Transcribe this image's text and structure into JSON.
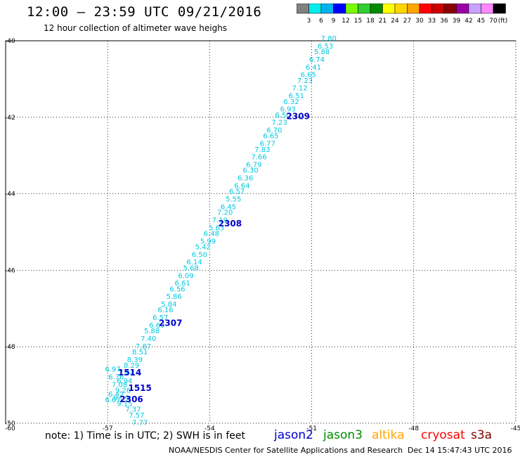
{
  "title": "12:00 – 23:59 UTC 09/21/2016",
  "subtitle": "12 hour collection of altimeter wave heighs",
  "colorbar": {
    "labels": [
      "3",
      "6",
      "9",
      "12",
      "15",
      "18",
      "21",
      "24",
      "27",
      "30",
      "33",
      "36",
      "39",
      "42",
      "45",
      "70"
    ],
    "unit": "(ft)",
    "colors": [
      "#808080",
      "#00eeee",
      "#00b2ee",
      "#0000ff",
      "#7cfc00",
      "#32cd32",
      "#008b00",
      "#ffff00",
      "#ffd700",
      "#ffa500",
      "#ff0000",
      "#cd0000",
      "#8b0000",
      "#9a00a5",
      "#c8a2ff",
      "#ff88ff",
      "#000000"
    ]
  },
  "map": {
    "lon_ticks": [
      "-57",
      "-54",
      "-51",
      "-48",
      "-45"
    ],
    "lat_ticks": [
      "-40",
      "-42",
      "-44",
      "-46",
      "-48",
      "-50"
    ],
    "corner_label": "-60",
    "track_color": "#00c8e0",
    "time_color": "#0000cd",
    "wave_labels": [
      {
        "text": "7.80",
        "lon": -50.5,
        "lat": -40.0
      },
      {
        "text": "6.53",
        "lon": -50.6,
        "lat": -40.2
      },
      {
        "text": "5.88",
        "lon": -50.7,
        "lat": -40.35
      },
      {
        "text": "6.74",
        "lon": -50.85,
        "lat": -40.55
      },
      {
        "text": "6.41",
        "lon": -50.95,
        "lat": -40.75
      },
      {
        "text": "6.65",
        "lon": -51.1,
        "lat": -40.95
      },
      {
        "text": "7.23",
        "lon": -51.2,
        "lat": -41.1
      },
      {
        "text": "7.12",
        "lon": -51.35,
        "lat": -41.3
      },
      {
        "text": "6.51",
        "lon": -51.45,
        "lat": -41.5
      },
      {
        "text": "6.32",
        "lon": -51.6,
        "lat": -41.65
      },
      {
        "text": "6.93",
        "lon": -51.7,
        "lat": -41.85
      },
      {
        "text": "6.50",
        "lon": -51.85,
        "lat": -42.0
      },
      {
        "text": "7.23",
        "lon": -51.95,
        "lat": -42.2
      },
      {
        "text": "6.70",
        "lon": -52.1,
        "lat": -42.4
      },
      {
        "text": "6.65",
        "lon": -52.2,
        "lat": -42.55
      },
      {
        "text": "6.77",
        "lon": -52.3,
        "lat": -42.75
      },
      {
        "text": "7.83",
        "lon": -52.45,
        "lat": -42.9
      },
      {
        "text": "7.66",
        "lon": -52.55,
        "lat": -43.1
      },
      {
        "text": "6.79",
        "lon": -52.7,
        "lat": -43.3
      },
      {
        "text": "6.30",
        "lon": -52.8,
        "lat": -43.45
      },
      {
        "text": "6.36",
        "lon": -52.95,
        "lat": -43.65
      },
      {
        "text": "6.64",
        "lon": -53.05,
        "lat": -43.85
      },
      {
        "text": "6.57",
        "lon": -53.2,
        "lat": -44.0
      },
      {
        "text": "5.55",
        "lon": -53.3,
        "lat": -44.2
      },
      {
        "text": "6.45",
        "lon": -53.45,
        "lat": -44.4
      },
      {
        "text": "7.20",
        "lon": -53.55,
        "lat": -44.55
      },
      {
        "text": "7.19",
        "lon": -53.7,
        "lat": -44.75
      },
      {
        "text": "5.63",
        "lon": -53.8,
        "lat": -44.95
      },
      {
        "text": "6.48",
        "lon": -53.95,
        "lat": -45.1
      },
      {
        "text": "5.99",
        "lon": -54.05,
        "lat": -45.3
      },
      {
        "text": "5.42",
        "lon": -54.2,
        "lat": -45.45
      },
      {
        "text": "6.50",
        "lon": -54.3,
        "lat": -45.65
      },
      {
        "text": "6.14",
        "lon": -54.45,
        "lat": -45.85
      },
      {
        "text": "5.68",
        "lon": -54.55,
        "lat": -46.0
      },
      {
        "text": "6.09",
        "lon": -54.7,
        "lat": -46.2
      },
      {
        "text": "6.61",
        "lon": -54.8,
        "lat": -46.4
      },
      {
        "text": "6.56",
        "lon": -54.95,
        "lat": -46.55
      },
      {
        "text": "5.86",
        "lon": -55.05,
        "lat": -46.75
      },
      {
        "text": "5.84",
        "lon": -55.2,
        "lat": -46.95
      },
      {
        "text": "6.16",
        "lon": -55.3,
        "lat": -47.1
      },
      {
        "text": "6.57",
        "lon": -55.45,
        "lat": -47.3
      },
      {
        "text": "6.60",
        "lon": -55.55,
        "lat": -47.5
      },
      {
        "text": "5.88",
        "lon": -55.7,
        "lat": -47.65
      },
      {
        "text": "7.40",
        "lon": -55.8,
        "lat": -47.85
      },
      {
        "text": "7.87",
        "lon": -55.95,
        "lat": -48.05
      },
      {
        "text": "8.51",
        "lon": -56.05,
        "lat": -48.2
      },
      {
        "text": "8.39",
        "lon": -56.2,
        "lat": -48.4
      },
      {
        "text": "8.29",
        "lon": -56.3,
        "lat": -48.55
      },
      {
        "text": "6.97",
        "lon": -56.85,
        "lat": -48.65
      },
      {
        "text": "7.04",
        "lon": -56.45,
        "lat": -48.75
      },
      {
        "text": "6.76",
        "lon": -56.75,
        "lat": -48.85
      },
      {
        "text": "6.94",
        "lon": -56.5,
        "lat": -48.95
      },
      {
        "text": "7.08",
        "lon": -56.65,
        "lat": -49.05
      },
      {
        "text": "9.26",
        "lon": -56.55,
        "lat": -49.2
      },
      {
        "text": "6.42",
        "lon": -56.75,
        "lat": -49.3
      },
      {
        "text": "9.09",
        "lon": -56.6,
        "lat": -49.4
      },
      {
        "text": "6.67",
        "lon": -56.85,
        "lat": -49.45
      },
      {
        "text": "9.15",
        "lon": -56.5,
        "lat": -49.55
      },
      {
        "text": "7.37",
        "lon": -56.25,
        "lat": -49.7
      },
      {
        "text": "7.57",
        "lon": -56.15,
        "lat": -49.85
      },
      {
        "text": "7.77",
        "lon": -56.05,
        "lat": -50.05
      }
    ],
    "time_labels": [
      {
        "text": "2309",
        "lon": -51.4,
        "lat": -42.05
      },
      {
        "text": "2308",
        "lon": -53.4,
        "lat": -44.85
      },
      {
        "text": "2307",
        "lon": -55.15,
        "lat": -47.45
      },
      {
        "text": "1514",
        "lon": -56.35,
        "lat": -48.75
      },
      {
        "text": "1515",
        "lon": -56.05,
        "lat": -49.15
      },
      {
        "text": "2306",
        "lon": -56.3,
        "lat": -49.45
      }
    ]
  },
  "note": "note: 1) Time is in UTC; 2) SWH is in feet",
  "satellites": [
    {
      "name": "jason2",
      "color": "#0000cd"
    },
    {
      "name": "jason3",
      "color": "#008b00"
    },
    {
      "name": "altika",
      "color": "#ffa500"
    },
    {
      "name": "cryosat",
      "color": "#ff0000"
    },
    {
      "name": "s3a",
      "color": "#800000"
    }
  ],
  "credit": "NOAA/NESDIS Center for Satellite Applications and Research",
  "timestamp": "Dec 14 15:47:43 UTC 2016"
}
